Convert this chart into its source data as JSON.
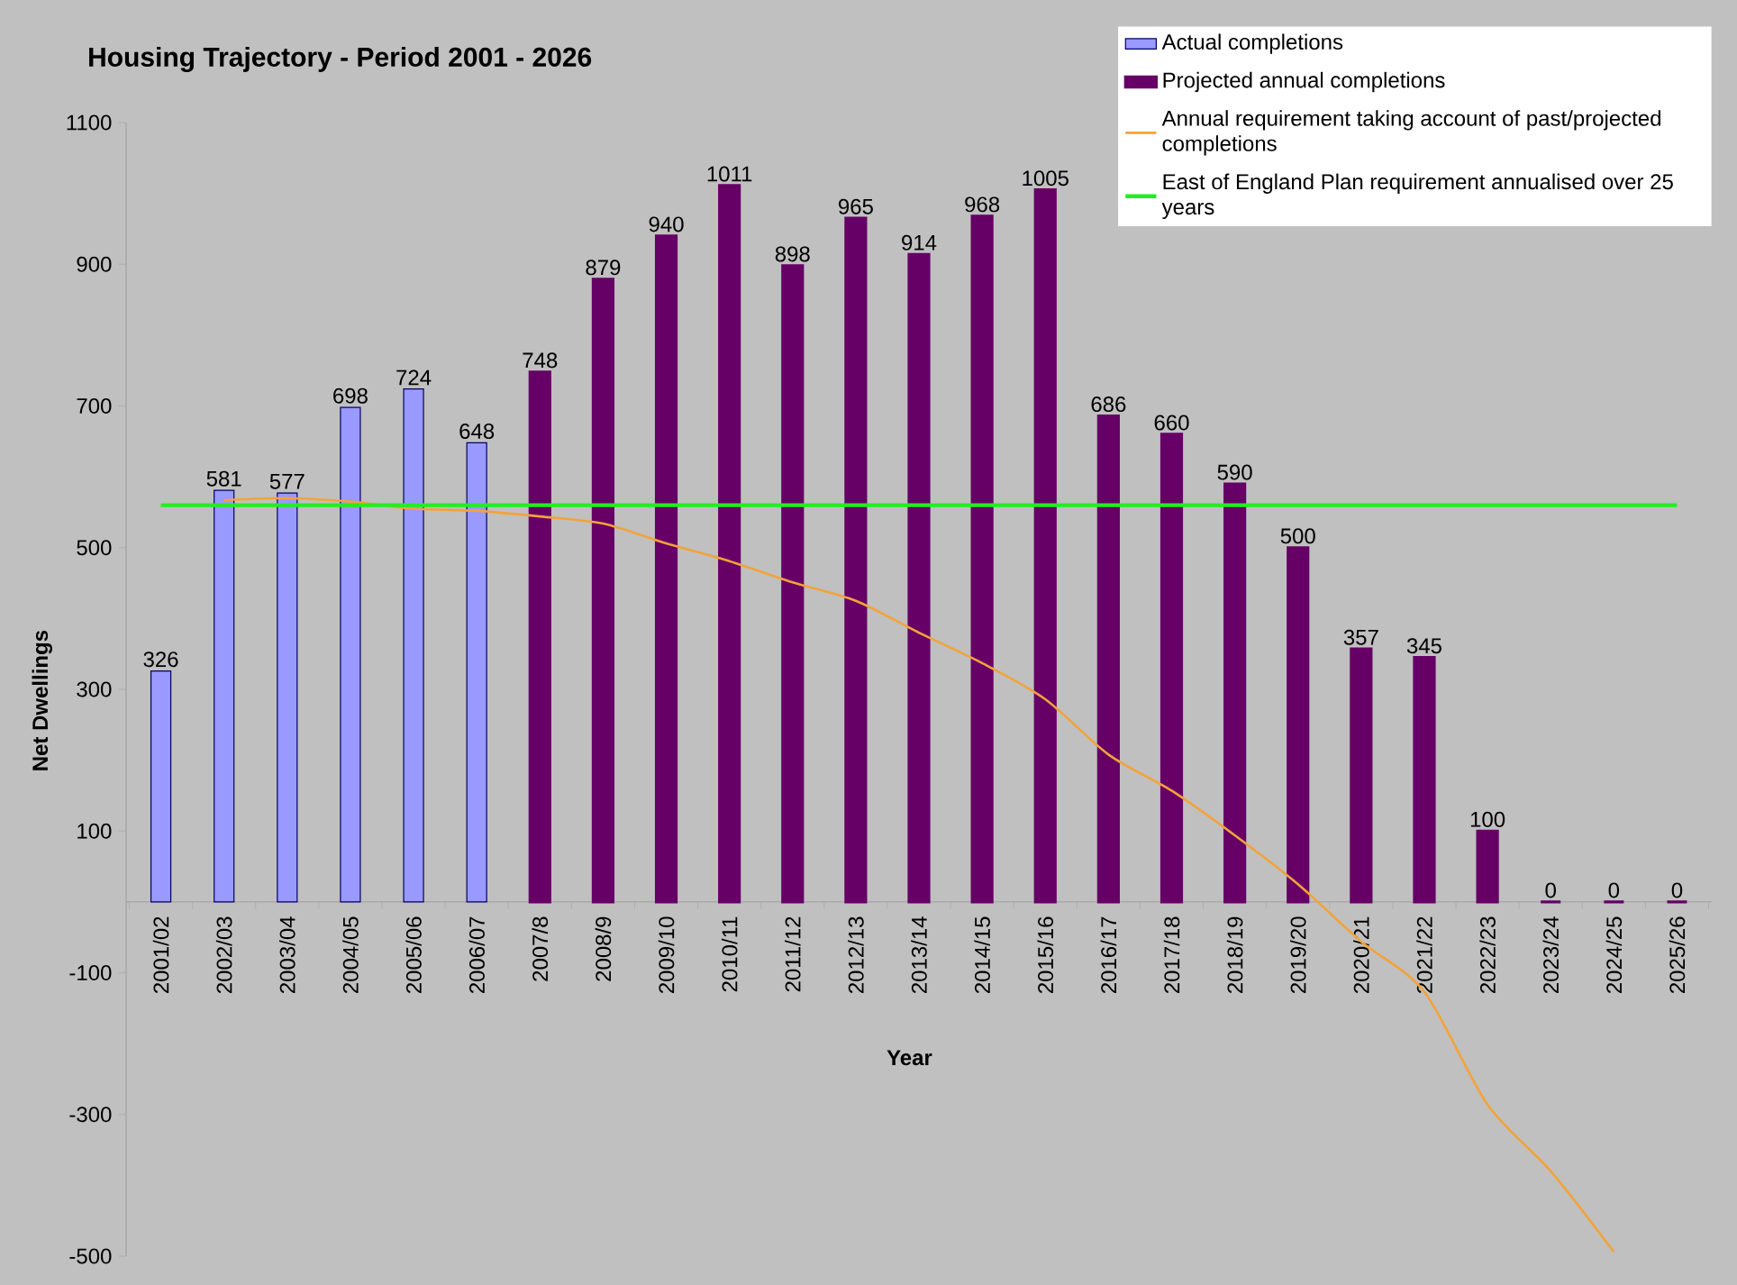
{
  "chart_data": {
    "type": "bar",
    "title": "Housing Trajectory - Period 2001 - 2026",
    "xlabel": "Year",
    "ylabel": "Net Dwellings",
    "categories": [
      "2001/02",
      "2002/03",
      "2003/04",
      "2004/05",
      "2005/06",
      "2006/07",
      "2007/8",
      "2008/9",
      "2009/10",
      "2010/11",
      "2011/12",
      "2012/13",
      "2013/14",
      "2014/15",
      "2015/16",
      "2016/17",
      "2017/18",
      "2018/19",
      "2019/20",
      "2020/21",
      "2021/22",
      "2022/23",
      "2023/24",
      "2024/25",
      "2025/26"
    ],
    "series": [
      {
        "name": "Actual completions",
        "color": "#9999ff",
        "values": [
          326,
          581,
          577,
          698,
          724,
          648,
          null,
          null,
          null,
          null,
          null,
          null,
          null,
          null,
          null,
          null,
          null,
          null,
          null,
          null,
          null,
          null,
          null,
          null,
          null
        ],
        "value_labels": [
          "326",
          "581",
          "577",
          "698",
          "724",
          "648",
          null,
          null,
          null,
          null,
          null,
          null,
          null,
          null,
          null,
          null,
          null,
          null,
          null,
          null,
          null,
          null,
          null,
          null,
          null
        ]
      },
      {
        "name": "Projected annual completions",
        "color": "#660066",
        "values": [
          null,
          null,
          null,
          null,
          null,
          null,
          748,
          879,
          940,
          1011,
          898,
          965,
          914,
          968,
          1005,
          686,
          660,
          590,
          500,
          357,
          345,
          100,
          0,
          0,
          0
        ],
        "value_labels": [
          null,
          null,
          null,
          null,
          null,
          null,
          "748",
          "879",
          "940",
          "1011",
          "898",
          "965",
          "914",
          "968",
          "1005",
          "686",
          "660",
          "590",
          "500",
          "357",
          "345",
          "100",
          "0",
          "0",
          "0"
        ]
      },
      {
        "name": "Annual requirement taking account of past/projected completions",
        "type": "line",
        "color": "#f2a33a",
        "values": [
          null,
          567,
          570,
          565,
          555,
          552,
          544,
          534,
          506,
          481,
          451,
          425,
          380,
          337,
          286,
          208,
          157,
          94,
          25,
          -56,
          -127,
          -286,
          -380,
          -494,
          null
        ]
      },
      {
        "name": "East of England Plan requirement annualised over 25 years",
        "type": "line",
        "color": "#22ee22",
        "values": [
          560,
          560,
          560,
          560,
          560,
          560,
          560,
          560,
          560,
          560,
          560,
          560,
          560,
          560,
          560,
          560,
          560,
          560,
          560,
          560,
          560,
          560,
          560,
          560,
          560
        ]
      }
    ],
    "ylim": [
      -500,
      1100
    ],
    "yticks": [
      -500,
      -300,
      -100,
      100,
      300,
      500,
      700,
      900,
      1100
    ],
    "legend": "top right"
  }
}
